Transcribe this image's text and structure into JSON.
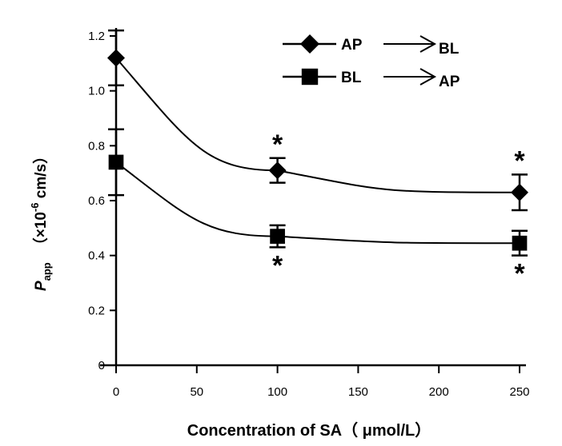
{
  "chart_data": {
    "type": "line",
    "x": [
      0,
      100,
      250
    ],
    "xticks": [
      "0",
      "50",
      "100",
      "150",
      "200",
      "250"
    ],
    "yticks": [
      "0",
      "0.2",
      "0.4",
      "0.6",
      "0.8",
      "1.0",
      "1.2"
    ],
    "xlim": [
      0,
      250
    ],
    "ylim": [
      0,
      1.2
    ],
    "xlabel": "Concentration of SA（ μmol/L）",
    "ylabel": {
      "symbol": "P",
      "subscript": "app",
      "open": "（×10",
      "exponent": "-6",
      "close": " cm/s）"
    },
    "series": [
      {
        "name_from": "AP",
        "name_to": "BL",
        "marker": "diamond",
        "values": [
          1.12,
          0.71,
          0.63
        ],
        "errors": [
          0.1,
          0.045,
          0.065
        ],
        "significance": [
          "",
          "*",
          "*"
        ]
      },
      {
        "name_from": "BL",
        "name_to": "AP",
        "marker": "square",
        "values": [
          0.74,
          0.47,
          0.445
        ],
        "errors": [
          0.12,
          0.04,
          0.045
        ],
        "significance": [
          "",
          "*",
          "*"
        ]
      }
    ],
    "legend_position": "top-right",
    "grid": false,
    "color": "#000000"
  }
}
